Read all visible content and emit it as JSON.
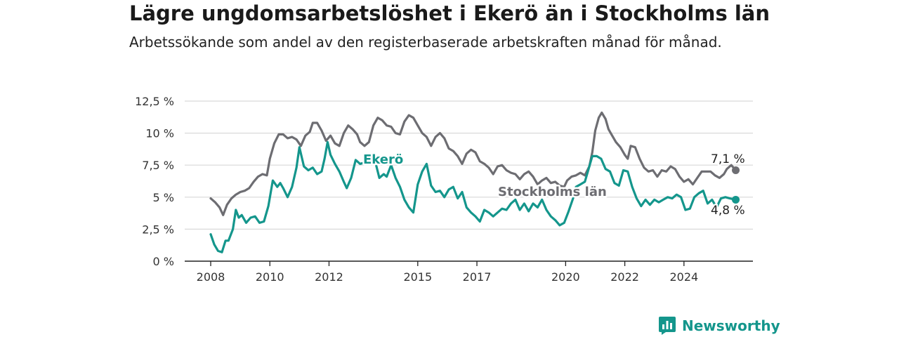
{
  "title": "Lägre ungdomsarbetslöshet i Ekerö än i Stockholms län",
  "subtitle": "Arbetssökande som andel av den registerbaserade arbetskraften månad för månad.",
  "brand": {
    "name": "Newsworthy",
    "icon": "chart-bubble-icon"
  },
  "chart_data": {
    "type": "line",
    "grid": true,
    "ylim": [
      0,
      12.5
    ],
    "xlim": [
      2008,
      2025.5
    ],
    "y_ticks": [
      {
        "value": 0,
        "label": "0 %"
      },
      {
        "value": 2.5,
        "label": "2,5 %"
      },
      {
        "value": 5,
        "label": "5 %"
      },
      {
        "value": 7.5,
        "label": "7,5 %"
      },
      {
        "value": 10,
        "label": "10 %"
      },
      {
        "value": 12.5,
        "label": "12,5 %"
      }
    ],
    "x_ticks": [
      {
        "value": 2008,
        "label": "2008"
      },
      {
        "value": 2010,
        "label": "2010"
      },
      {
        "value": 2012,
        "label": "2012"
      },
      {
        "value": 2015,
        "label": "2015"
      },
      {
        "value": 2017,
        "label": "2017"
      },
      {
        "value": 2020,
        "label": "2020"
      },
      {
        "value": 2022,
        "label": "2022"
      },
      {
        "value": 2024,
        "label": "2024"
      }
    ],
    "series": [
      {
        "name": "Stockholms län",
        "color": "#6d6d72",
        "end_label": "7,1 %",
        "points": [
          [
            2008.0,
            4.9
          ],
          [
            2008.15,
            4.6
          ],
          [
            2008.3,
            4.2
          ],
          [
            2008.42,
            3.6
          ],
          [
            2008.55,
            4.4
          ],
          [
            2008.7,
            4.9
          ],
          [
            2008.85,
            5.2
          ],
          [
            2009.0,
            5.4
          ],
          [
            2009.15,
            5.5
          ],
          [
            2009.3,
            5.7
          ],
          [
            2009.45,
            6.2
          ],
          [
            2009.6,
            6.6
          ],
          [
            2009.75,
            6.8
          ],
          [
            2009.9,
            6.7
          ],
          [
            2010.0,
            8.0
          ],
          [
            2010.15,
            9.2
          ],
          [
            2010.3,
            9.9
          ],
          [
            2010.45,
            9.9
          ],
          [
            2010.6,
            9.6
          ],
          [
            2010.75,
            9.7
          ],
          [
            2010.9,
            9.5
          ],
          [
            2011.05,
            9.0
          ],
          [
            2011.2,
            9.8
          ],
          [
            2011.35,
            10.1
          ],
          [
            2011.45,
            10.8
          ],
          [
            2011.6,
            10.8
          ],
          [
            2011.75,
            10.2
          ],
          [
            2011.9,
            9.4
          ],
          [
            2012.05,
            9.8
          ],
          [
            2012.2,
            9.2
          ],
          [
            2012.35,
            9.0
          ],
          [
            2012.5,
            10.0
          ],
          [
            2012.65,
            10.6
          ],
          [
            2012.8,
            10.3
          ],
          [
            2012.95,
            9.9
          ],
          [
            2013.05,
            9.3
          ],
          [
            2013.2,
            9.0
          ],
          [
            2013.35,
            9.3
          ],
          [
            2013.5,
            10.6
          ],
          [
            2013.65,
            11.2
          ],
          [
            2013.8,
            11.0
          ],
          [
            2013.95,
            10.6
          ],
          [
            2014.1,
            10.5
          ],
          [
            2014.25,
            10.0
          ],
          [
            2014.4,
            9.9
          ],
          [
            2014.55,
            10.9
          ],
          [
            2014.7,
            11.4
          ],
          [
            2014.85,
            11.2
          ],
          [
            2015.0,
            10.6
          ],
          [
            2015.15,
            10.0
          ],
          [
            2015.3,
            9.7
          ],
          [
            2015.45,
            9.0
          ],
          [
            2015.6,
            9.7
          ],
          [
            2015.75,
            10.0
          ],
          [
            2015.9,
            9.6
          ],
          [
            2016.05,
            8.8
          ],
          [
            2016.2,
            8.6
          ],
          [
            2016.35,
            8.2
          ],
          [
            2016.5,
            7.6
          ],
          [
            2016.65,
            8.4
          ],
          [
            2016.8,
            8.7
          ],
          [
            2016.95,
            8.5
          ],
          [
            2017.1,
            7.8
          ],
          [
            2017.25,
            7.6
          ],
          [
            2017.4,
            7.3
          ],
          [
            2017.55,
            6.8
          ],
          [
            2017.7,
            7.4
          ],
          [
            2017.85,
            7.5
          ],
          [
            2018.0,
            7.1
          ],
          [
            2018.15,
            6.9
          ],
          [
            2018.3,
            6.8
          ],
          [
            2018.45,
            6.4
          ],
          [
            2018.6,
            6.8
          ],
          [
            2018.75,
            7.0
          ],
          [
            2018.9,
            6.6
          ],
          [
            2019.05,
            6.0
          ],
          [
            2019.2,
            6.3
          ],
          [
            2019.35,
            6.5
          ],
          [
            2019.5,
            6.1
          ],
          [
            2019.65,
            6.2
          ],
          [
            2019.8,
            5.9
          ],
          [
            2019.95,
            5.8
          ],
          [
            2020.05,
            6.3
          ],
          [
            2020.2,
            6.6
          ],
          [
            2020.35,
            6.7
          ],
          [
            2020.5,
            6.9
          ],
          [
            2020.65,
            6.7
          ],
          [
            2020.8,
            7.4
          ],
          [
            2020.9,
            8.5
          ],
          [
            2021.0,
            10.2
          ],
          [
            2021.12,
            11.2
          ],
          [
            2021.22,
            11.6
          ],
          [
            2021.35,
            11.1
          ],
          [
            2021.45,
            10.3
          ],
          [
            2021.55,
            9.9
          ],
          [
            2021.7,
            9.3
          ],
          [
            2021.85,
            8.9
          ],
          [
            2022.0,
            8.3
          ],
          [
            2022.1,
            8.0
          ],
          [
            2022.2,
            9.0
          ],
          [
            2022.35,
            8.9
          ],
          [
            2022.5,
            8.0
          ],
          [
            2022.65,
            7.3
          ],
          [
            2022.8,
            7.0
          ],
          [
            2022.95,
            7.1
          ],
          [
            2023.1,
            6.6
          ],
          [
            2023.25,
            7.1
          ],
          [
            2023.4,
            7.0
          ],
          [
            2023.55,
            7.4
          ],
          [
            2023.7,
            7.2
          ],
          [
            2023.85,
            6.6
          ],
          [
            2024.0,
            6.2
          ],
          [
            2024.15,
            6.4
          ],
          [
            2024.3,
            6.0
          ],
          [
            2024.45,
            6.5
          ],
          [
            2024.6,
            7.0
          ],
          [
            2024.75,
            7.0
          ],
          [
            2024.9,
            7.0
          ],
          [
            2025.05,
            6.7
          ],
          [
            2025.2,
            6.5
          ],
          [
            2025.35,
            6.8
          ],
          [
            2025.45,
            7.2
          ],
          [
            2025.6,
            7.5
          ],
          [
            2025.75,
            7.1
          ]
        ]
      },
      {
        "name": "Ekerö",
        "color": "#14968c",
        "end_label": "4,8 %",
        "points": [
          [
            2008.0,
            2.1
          ],
          [
            2008.12,
            1.3
          ],
          [
            2008.25,
            0.8
          ],
          [
            2008.38,
            0.7
          ],
          [
            2008.5,
            1.6
          ],
          [
            2008.6,
            1.6
          ],
          [
            2008.75,
            2.5
          ],
          [
            2008.85,
            4.0
          ],
          [
            2008.95,
            3.4
          ],
          [
            2009.05,
            3.6
          ],
          [
            2009.2,
            3.0
          ],
          [
            2009.35,
            3.4
          ],
          [
            2009.5,
            3.5
          ],
          [
            2009.65,
            3.0
          ],
          [
            2009.8,
            3.1
          ],
          [
            2009.95,
            4.3
          ],
          [
            2010.1,
            6.3
          ],
          [
            2010.25,
            5.8
          ],
          [
            2010.35,
            6.1
          ],
          [
            2010.45,
            5.7
          ],
          [
            2010.6,
            5.0
          ],
          [
            2010.75,
            5.8
          ],
          [
            2010.9,
            7.3
          ],
          [
            2011.0,
            8.9
          ],
          [
            2011.15,
            7.4
          ],
          [
            2011.3,
            7.1
          ],
          [
            2011.45,
            7.3
          ],
          [
            2011.6,
            6.8
          ],
          [
            2011.75,
            7.0
          ],
          [
            2011.85,
            8.0
          ],
          [
            2011.95,
            9.3
          ],
          [
            2012.05,
            8.3
          ],
          [
            2012.2,
            7.6
          ],
          [
            2012.35,
            7.0
          ],
          [
            2012.5,
            6.2
          ],
          [
            2012.6,
            5.7
          ],
          [
            2012.75,
            6.5
          ],
          [
            2012.9,
            7.9
          ],
          [
            2013.05,
            7.6
          ],
          [
            2013.2,
            7.7
          ],
          [
            2013.55,
            7.9
          ],
          [
            2013.7,
            6.5
          ],
          [
            2013.85,
            6.8
          ],
          [
            2013.95,
            6.6
          ],
          [
            2014.1,
            7.5
          ],
          [
            2014.25,
            6.5
          ],
          [
            2014.4,
            5.8
          ],
          [
            2014.55,
            4.8
          ],
          [
            2014.7,
            4.2
          ],
          [
            2014.85,
            3.8
          ],
          [
            2015.0,
            6.0
          ],
          [
            2015.15,
            7.0
          ],
          [
            2015.3,
            7.6
          ],
          [
            2015.45,
            5.9
          ],
          [
            2015.6,
            5.4
          ],
          [
            2015.75,
            5.5
          ],
          [
            2015.9,
            5.0
          ],
          [
            2016.05,
            5.6
          ],
          [
            2016.2,
            5.8
          ],
          [
            2016.35,
            4.9
          ],
          [
            2016.5,
            5.4
          ],
          [
            2016.65,
            4.2
          ],
          [
            2016.8,
            3.8
          ],
          [
            2016.95,
            3.5
          ],
          [
            2017.1,
            3.1
          ],
          [
            2017.25,
            4.0
          ],
          [
            2017.4,
            3.8
          ],
          [
            2017.55,
            3.5
          ],
          [
            2017.7,
            3.8
          ],
          [
            2017.85,
            4.1
          ],
          [
            2018.0,
            4.0
          ],
          [
            2018.15,
            4.5
          ],
          [
            2018.3,
            4.8
          ],
          [
            2018.45,
            4.0
          ],
          [
            2018.6,
            4.5
          ],
          [
            2018.75,
            3.9
          ],
          [
            2018.9,
            4.5
          ],
          [
            2019.05,
            4.2
          ],
          [
            2019.2,
            4.8
          ],
          [
            2019.35,
            4.0
          ],
          [
            2019.5,
            3.5
          ],
          [
            2019.65,
            3.2
          ],
          [
            2019.8,
            2.8
          ],
          [
            2019.95,
            3.0
          ],
          [
            2020.1,
            3.9
          ],
          [
            2020.25,
            4.9
          ],
          [
            2020.35,
            5.8
          ],
          [
            2020.5,
            6.0
          ],
          [
            2020.65,
            6.2
          ],
          [
            2020.75,
            7.0
          ],
          [
            2020.9,
            8.2
          ],
          [
            2021.05,
            8.2
          ],
          [
            2021.2,
            8.0
          ],
          [
            2021.35,
            7.2
          ],
          [
            2021.5,
            7.0
          ],
          [
            2021.65,
            6.1
          ],
          [
            2021.8,
            5.9
          ],
          [
            2021.95,
            7.1
          ],
          [
            2022.1,
            7.0
          ],
          [
            2022.25,
            5.8
          ],
          [
            2022.4,
            4.9
          ],
          [
            2022.55,
            4.3
          ],
          [
            2022.7,
            4.8
          ],
          [
            2022.85,
            4.4
          ],
          [
            2023.0,
            4.8
          ],
          [
            2023.15,
            4.6
          ],
          [
            2023.3,
            4.8
          ],
          [
            2023.45,
            5.0
          ],
          [
            2023.6,
            4.9
          ],
          [
            2023.75,
            5.2
          ],
          [
            2023.9,
            5.0
          ],
          [
            2024.05,
            4.0
          ],
          [
            2024.2,
            4.1
          ],
          [
            2024.35,
            5.0
          ],
          [
            2024.5,
            5.3
          ],
          [
            2024.65,
            5.5
          ],
          [
            2024.8,
            4.5
          ],
          [
            2024.95,
            4.8
          ],
          [
            2025.1,
            4.2
          ],
          [
            2025.25,
            4.9
          ],
          [
            2025.4,
            5.0
          ],
          [
            2025.55,
            4.9
          ],
          [
            2025.75,
            4.8
          ]
        ]
      }
    ]
  }
}
